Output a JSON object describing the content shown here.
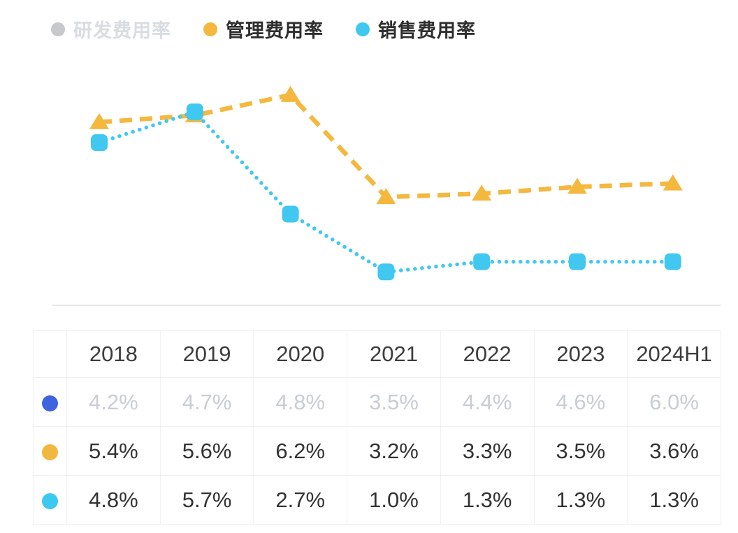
{
  "legend": {
    "items": [
      {
        "key": "rd",
        "label": "研发费用率",
        "dot_color": "#c6c8cc",
        "label_color": "#d9dce1",
        "disabled": true
      },
      {
        "key": "admin",
        "label": "管理费用率",
        "dot_color": "#f4b83f",
        "label_color": "#2e2e2e",
        "disabled": false
      },
      {
        "key": "sales",
        "label": "销售费用率",
        "dot_color": "#41c8f1",
        "label_color": "#2e2e2e",
        "disabled": false
      }
    ]
  },
  "chart_data": {
    "type": "line",
    "categories": [
      "2018",
      "2019",
      "2020",
      "2021",
      "2022",
      "2023",
      "2024H1"
    ],
    "unit": "%",
    "baseline_color": "#e7e8ea",
    "legend_position": "top-left",
    "grid": false,
    "ylim": [
      0,
      7
    ],
    "series": [
      {
        "key": "rd",
        "name": "研发费用率",
        "values": [
          4.2,
          4.7,
          4.8,
          3.5,
          4.4,
          4.6,
          6.0
        ],
        "color": "#3e63df",
        "marker": "circle",
        "line_style": "solid",
        "visible": false
      },
      {
        "key": "admin",
        "name": "管理费用率",
        "values": [
          5.4,
          5.6,
          6.2,
          3.2,
          3.3,
          3.5,
          3.6
        ],
        "color": "#f4b83f",
        "marker": "triangle",
        "line_style": "dashed",
        "visible": true
      },
      {
        "key": "sales",
        "name": "销售费用率",
        "values": [
          4.8,
          5.7,
          2.7,
          1.0,
          1.3,
          1.3,
          1.3
        ],
        "color": "#41c8f1",
        "marker": "square",
        "line_style": "dotted",
        "visible": true
      }
    ]
  },
  "table": {
    "header": [
      "",
      "2018",
      "2019",
      "2020",
      "2021",
      "2022",
      "2023",
      "2024H1"
    ],
    "rows": [
      {
        "key": "rd",
        "dot_color": "#3e63df",
        "muted": true,
        "values": [
          "4.2%",
          "4.7%",
          "4.8%",
          "3.5%",
          "4.4%",
          "4.6%",
          "6.0%"
        ]
      },
      {
        "key": "admin",
        "dot_color": "#f0b83e",
        "muted": false,
        "values": [
          "5.4%",
          "5.6%",
          "6.2%",
          "3.2%",
          "3.3%",
          "3.5%",
          "3.6%"
        ]
      },
      {
        "key": "sales",
        "dot_color": "#3cc9f0",
        "muted": false,
        "values": [
          "4.8%",
          "5.7%",
          "2.7%",
          "1.0%",
          "1.3%",
          "1.3%",
          "1.3%"
        ]
      }
    ]
  }
}
